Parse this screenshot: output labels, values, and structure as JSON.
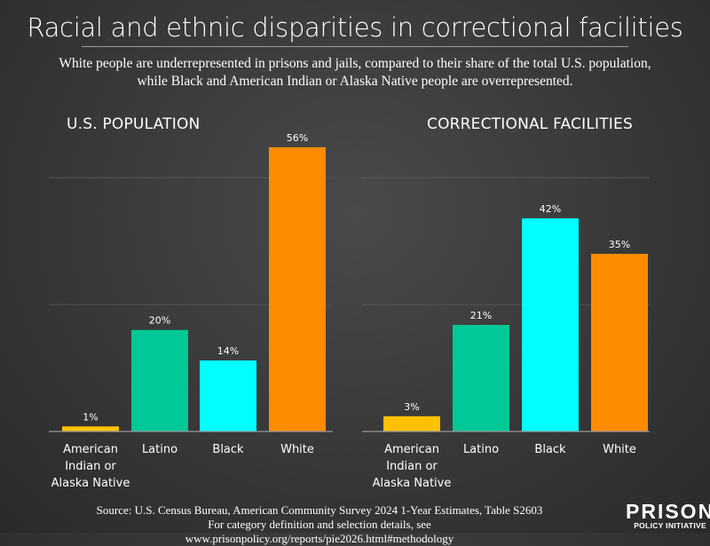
{
  "title": "Racial and ethnic disparities in correctional facilities",
  "subtitle": "White people are underrepresented in prisons and jails, compared to their share of the total U.S. population, while Black and American Indian or Alaska Native people are overrepresented.",
  "source_line1": "Source: U.S. Census Bureau, American Community Survey 2024 1-Year Estimates, Table S2603",
  "source_line2": "For category definition and selection details, see www.prisonpolicy.org/reports/pie2026.html#methodology",
  "logo": {
    "line1": "PRISON",
    "line2": "POLICY INITIATIVE"
  },
  "colors": {
    "American Indian or Alaska Native": "#ffc000",
    "Latino": "#00c896",
    "Black": "#00ffff",
    "White": "#ff8c00"
  },
  "chart_data": [
    {
      "type": "bar",
      "title": "U.S. POPULATION",
      "categories": [
        "American Indian or Alaska Native",
        "Latino",
        "Black",
        "White"
      ],
      "values": [
        1,
        20,
        14,
        56
      ],
      "data_labels": [
        "1%",
        "20%",
        "14%",
        "56%"
      ],
      "ylim": [
        0,
        60
      ],
      "gridlines": [
        25,
        50
      ],
      "grid": true
    },
    {
      "type": "bar",
      "title": "CORRECTIONAL FACILITIES",
      "categories": [
        "American Indian or Alaska Native",
        "Latino",
        "Black",
        "White"
      ],
      "values": [
        3,
        21,
        42,
        35
      ],
      "data_labels": [
        "3%",
        "21%",
        "42%",
        "35%"
      ],
      "ylim": [
        0,
        60
      ],
      "gridlines": [
        25,
        50
      ],
      "grid": true
    }
  ]
}
